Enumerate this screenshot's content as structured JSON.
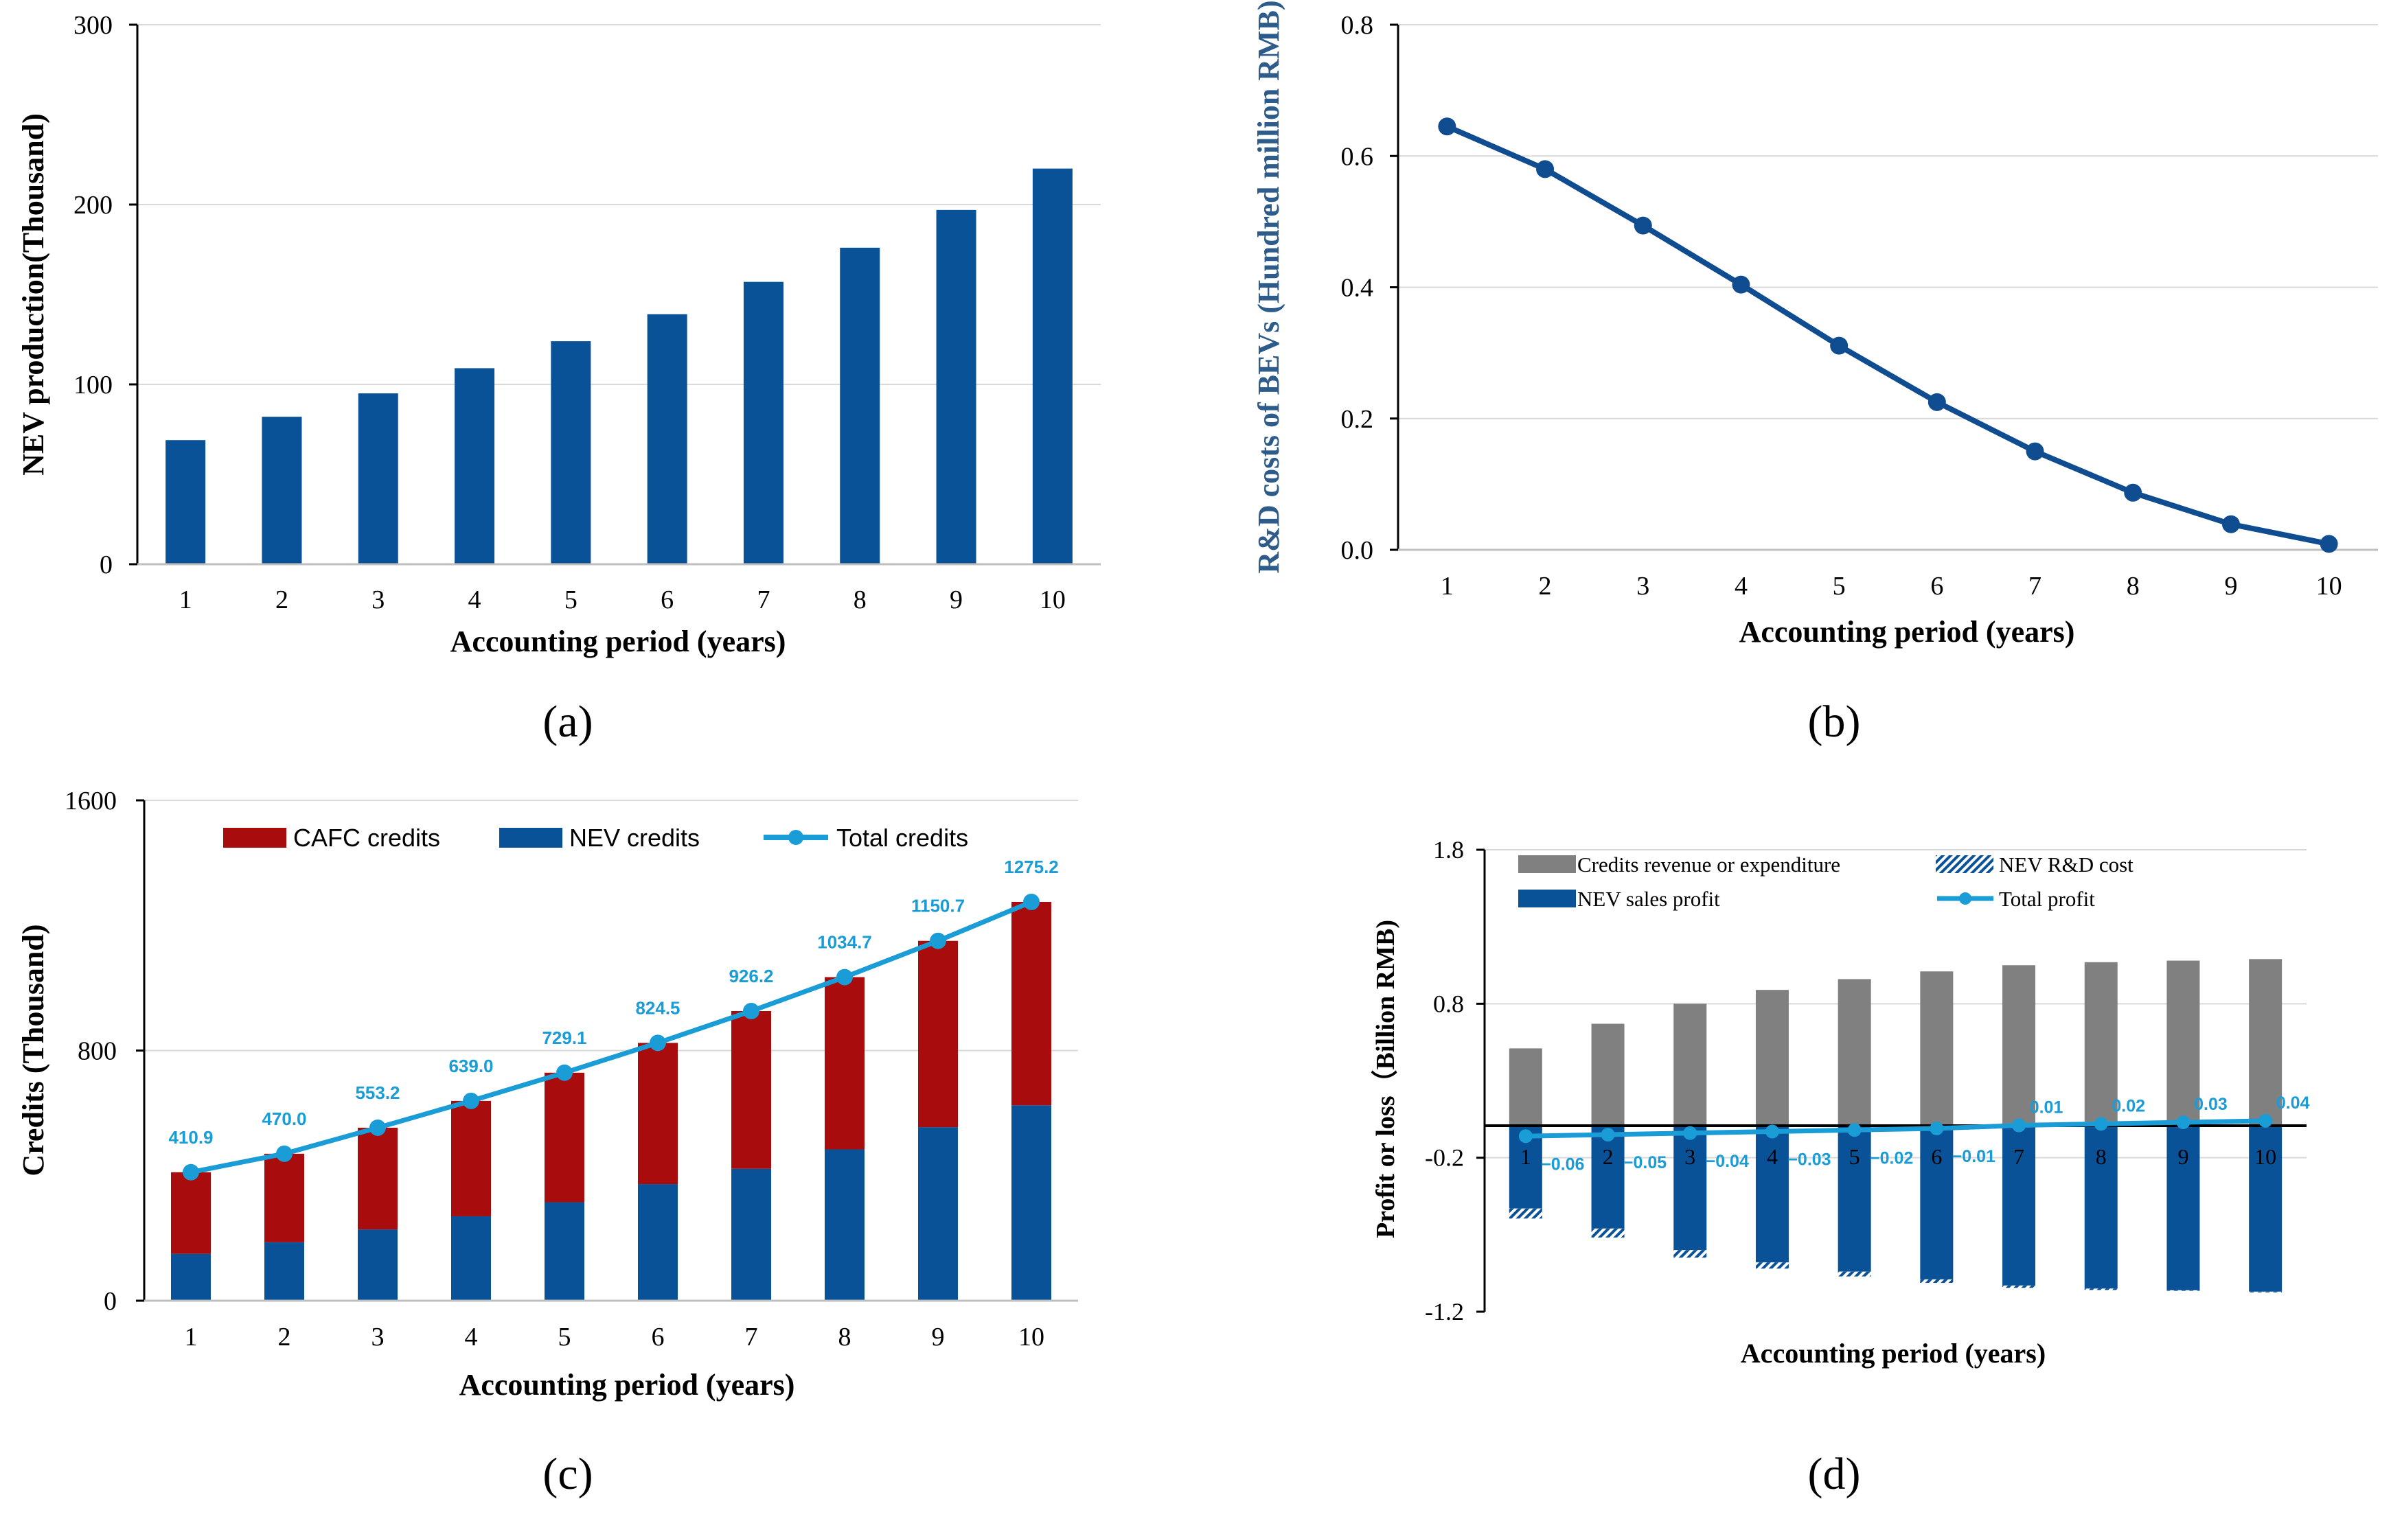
{
  "panel_labels": [
    "(a)",
    "(b)",
    "(c)",
    "(d)"
  ],
  "chart_data": [
    {
      "id": "a",
      "type": "bar",
      "title": "",
      "xlabel": "Accounting period (years)",
      "ylabel": "NEV production(Thousand)",
      "categories": [
        "1",
        "2",
        "3",
        "4",
        "5",
        "6",
        "7",
        "8",
        "9",
        "10"
      ],
      "values": [
        69,
        82,
        95,
        109,
        124,
        139,
        157,
        176,
        197,
        220
      ],
      "ylim": [
        0,
        300
      ],
      "yticks": [
        0,
        100,
        200,
        300
      ],
      "color": "#0a5298",
      "grid": true
    },
    {
      "id": "b",
      "type": "line",
      "title": "",
      "xlabel": "Accounting period (years)",
      "ylabel": "R&D costs of BEVs (Hundred million RMB)",
      "x": [
        "1",
        "2",
        "3",
        "4",
        "5",
        "6",
        "7",
        "8",
        "9",
        "10"
      ],
      "values": [
        0.645,
        0.58,
        0.494,
        0.404,
        0.311,
        0.225,
        0.15,
        0.087,
        0.039,
        0.009
      ],
      "ylim": [
        0,
        0.8
      ],
      "yticks": [
        "0.0",
        "0.2",
        "0.4",
        "0.6",
        "0.8"
      ],
      "color": "#0f4c90",
      "grid": true
    },
    {
      "id": "c",
      "type": "bar",
      "title": "",
      "xlabel": "Accounting period (years)",
      "ylabel": "Credits (Thousand)",
      "categories": [
        "1",
        "2",
        "3",
        "4",
        "5",
        "6",
        "7",
        "8",
        "9",
        "10"
      ],
      "ylim": [
        0,
        1600
      ],
      "yticks": [
        0,
        800,
        1600
      ],
      "legend": [
        "CAFC credits",
        "NEV credits",
        "Total credits"
      ],
      "series": [
        {
          "name": "NEV credits",
          "kind": "stacked-bar",
          "color": "#0a5298",
          "values": [
            150,
            187,
            228,
            270,
            315,
            373,
            422,
            484,
            555,
            625
          ]
        },
        {
          "name": "CAFC credits",
          "kind": "stacked-bar",
          "color": "#a80c0c",
          "values": [
            260.9,
            283.0,
            325.2,
            369.0,
            414.1,
            451.5,
            504.2,
            550.7,
            595.7,
            650.2
          ]
        },
        {
          "name": "Total credits",
          "kind": "line",
          "color": "#1a9cd6",
          "values": [
            410.9,
            470.0,
            553.2,
            639.0,
            729.1,
            824.5,
            926.2,
            1034.7,
            1150.7,
            1275.2
          ],
          "labels": [
            "410.9",
            "470.0",
            "553.2",
            "639.0",
            "729.1",
            "824.5",
            "926.2",
            "1034.7",
            "1150.7",
            "1275.2"
          ]
        }
      ]
    },
    {
      "id": "d",
      "type": "bar",
      "title": "",
      "xlabel": "Accounting period (years)",
      "ylabel": "Profit or loss（Billion RMB)",
      "categories": [
        "1",
        "2",
        "3",
        "4",
        "5",
        "6",
        "7",
        "8",
        "9",
        "10"
      ],
      "ylim": [
        -1.2,
        1.8
      ],
      "yticks": [
        "-1.2",
        "-0.2",
        "0.8",
        "1.8"
      ],
      "legend": [
        "Credits revenue or expenditure",
        "NEV R&D cost",
        "NEV sales profit",
        "Total profit"
      ],
      "series": [
        {
          "name": "Credits revenue or expenditure",
          "kind": "bar",
          "color": "#808080",
          "values": [
            0.51,
            0.67,
            0.8,
            0.89,
            0.96,
            1.01,
            1.05,
            1.07,
            1.08,
            1.09
          ]
        },
        {
          "name": "NEV sales profit",
          "kind": "bar",
          "color": "#0a5298",
          "values": [
            -0.53,
            -0.66,
            -0.8,
            -0.88,
            -0.94,
            -0.99,
            -1.03,
            -1.05,
            -1.06,
            -1.07
          ]
        },
        {
          "name": "NEV R&D cost",
          "kind": "hatched-bar",
          "color": "#0a5298",
          "values": [
            -0.065,
            -0.058,
            -0.049,
            -0.04,
            -0.031,
            -0.023,
            -0.015,
            -0.009,
            -0.004,
            -0.001
          ]
        },
        {
          "name": "Total profit",
          "kind": "line",
          "color": "#1a9cd6",
          "values": [
            -0.06,
            -0.05,
            -0.04,
            -0.03,
            -0.02,
            -0.01,
            0.01,
            0.02,
            0.03,
            0.04
          ],
          "labels": [
            "−0.06",
            "−0.05",
            "−0.04",
            "−0.03",
            "−0.02",
            "−0.01",
            "0.01",
            "0.02",
            "0.03",
            "0.04"
          ]
        }
      ]
    }
  ]
}
